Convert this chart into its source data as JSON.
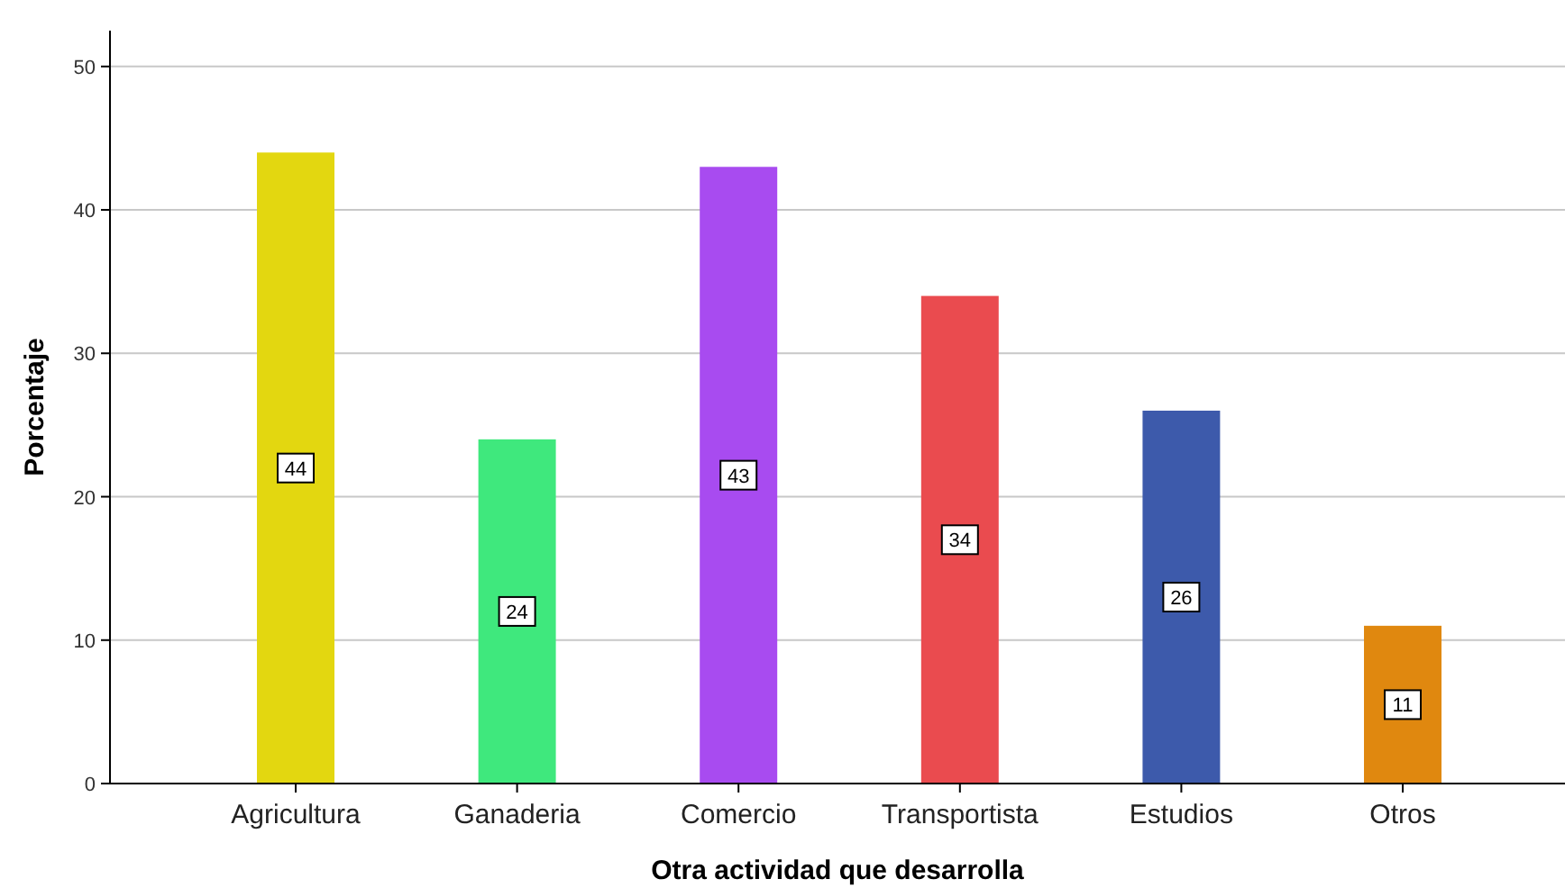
{
  "chart_data": {
    "type": "bar",
    "xlabel": "Otra actividad que desarrolla",
    "ylabel": "Porcentaje",
    "categories": [
      "Agricultura",
      "Ganaderia",
      "Comercio",
      "Transportista",
      "Estudios",
      "Otros"
    ],
    "values": [
      44,
      24,
      43,
      34,
      26,
      11
    ],
    "colors": [
      "#e3d710",
      "#3fe87d",
      "#a84bf0",
      "#ea4b4f",
      "#3d5aab",
      "#e0880f"
    ],
    "ylim": [
      0,
      52.5
    ],
    "yticks": [
      0,
      10,
      20,
      30,
      40,
      50
    ],
    "grid": "y",
    "data_labels": true
  }
}
